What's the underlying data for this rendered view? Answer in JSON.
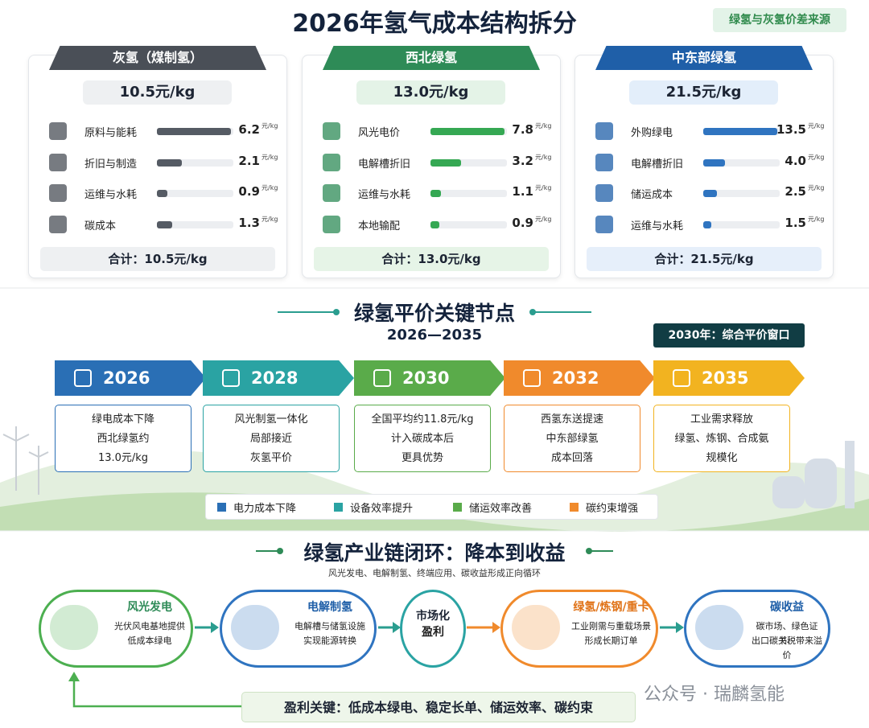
{
  "header": {
    "title": "2026年氢气成本结构拆分",
    "badge": "绿氢与灰氢价差来源"
  },
  "cost_panels": [
    {
      "label": "灰氢（煤制氢）",
      "price": "10.5元/kg",
      "unit": "元/kg",
      "items": [
        {
          "name": "原料与能耗",
          "value": 6.2
        },
        {
          "name": "折旧与制造",
          "value": 2.1
        },
        {
          "name": "运维与水耗",
          "value": 0.9
        },
        {
          "name": "碳成本",
          "value": 1.3
        }
      ],
      "total": "合计：10.5元/kg"
    },
    {
      "label": "西北绿氢",
      "price": "13.0元/kg",
      "unit": "元/kg",
      "items": [
        {
          "name": "风光电价",
          "value": 7.8
        },
        {
          "name": "电解槽折旧",
          "value": 3.2
        },
        {
          "name": "运维与水耗",
          "value": 1.1
        },
        {
          "name": "本地输配",
          "value": 0.9
        }
      ],
      "total": "合计：13.0元/kg"
    },
    {
      "label": "中东部绿氢",
      "price": "21.5元/kg",
      "unit": "元/kg",
      "items": [
        {
          "name": "外购绿电",
          "value": 13.5
        },
        {
          "name": "电解槽折旧",
          "value": 4,
          "value_label": "4.0"
        },
        {
          "name": "储运成本",
          "value": 2.5
        },
        {
          "name": "运维与水耗",
          "value": 1.5
        }
      ],
      "total": "合计：21.5元/kg"
    }
  ],
  "milestones": {
    "title": "绿氢平价关键节点",
    "period": "2026—2035",
    "badge": "2030年：综合平价窗口",
    "steps": [
      {
        "year": "2026",
        "lines": [
          "绿电成本下降",
          "西北绿氢约",
          "13.0元/kg"
        ]
      },
      {
        "year": "2028",
        "lines": [
          "风光制氢一体化",
          "局部接近",
          "灰氢平价"
        ]
      },
      {
        "year": "2030",
        "lines": [
          "全国平均约11.8元/kg",
          "计入碳成本后",
          "更具优势"
        ]
      },
      {
        "year": "2032",
        "lines": [
          "西氢东送提速",
          "中东部绿氢",
          "成本回落"
        ]
      },
      {
        "year": "2035",
        "lines": [
          "工业需求释放",
          "绿氢、炼钢、合成氨",
          "规模化"
        ]
      }
    ]
  },
  "legend": [
    "电力成本下降",
    "设备效率提升",
    "储运效率改善",
    "碳约束增强"
  ],
  "chain": {
    "title": "绿氢产业链闭环：降本到收益",
    "subtitle": "风光发电、电解制氢、终端应用、碳收益形成正向循环",
    "nodes": [
      {
        "title": "风光发电",
        "lines": [
          "光伏风电基地提供",
          "低成本绿电"
        ]
      },
      {
        "title": "电解制氢",
        "lines": [
          "电解槽与储氢设施",
          "实现能源转换"
        ]
      },
      {
        "title": "市场化",
        "lines": [
          "盈利"
        ]
      },
      {
        "title": "绿氢/炼钢/重卡",
        "lines": [
          "工业刚需与重载场景",
          "形成长期订单"
        ]
      },
      {
        "title": "碳收益",
        "lines": [
          "碳市场、绿色证书、",
          "出口碳关税带来溢价"
        ]
      }
    ],
    "key": "盈利关键：低成本绿电、稳定长单、储运效率、碳约束"
  },
  "watermark": "公众号 · 瑞麟氢能"
}
